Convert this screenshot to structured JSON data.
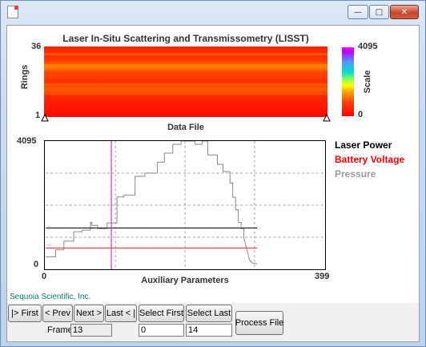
{
  "window": {
    "minimize_glyph": "—",
    "maximize_glyph": "□",
    "close_glyph": "✕"
  },
  "top_panel": {
    "title": "Laser In-Situ Scattering and Transmissometry (LISST)",
    "ylabel": "Rings",
    "y_max": "36",
    "y_min": "1",
    "xlabel": "Data File",
    "scale_label": "Scale",
    "scale_max": "4095",
    "scale_min": "0"
  },
  "chart_data": {
    "type": "line",
    "xlabel": "Auxiliary Parameters",
    "xlim": [
      0,
      399
    ],
    "ylim": [
      0,
      4095
    ],
    "x_tick_labels": [
      "0",
      "399"
    ],
    "y_tick_labels": [
      "0",
      "4095"
    ],
    "cursor_x": 94,
    "grid": true,
    "legend_placement": "right",
    "series": [
      {
        "name": "Laser Power",
        "color": "#000000",
        "x": [
          0,
          303
        ],
        "y": [
          1320,
          1320
        ]
      },
      {
        "name": "Battery Voltage",
        "color": "#ff0000",
        "x": [
          0,
          303
        ],
        "y": [
          680,
          680
        ]
      },
      {
        "name": "Pressure",
        "color": "#888888",
        "x": [
          0,
          14,
          14,
          26,
          26,
          40,
          40,
          52,
          52,
          64,
          64,
          66,
          66,
          74,
          74,
          88,
          88,
          102,
          102,
          112,
          112,
          128,
          128,
          142,
          142,
          160,
          160,
          170,
          170,
          182,
          182,
          194,
          194,
          214,
          214,
          224,
          224,
          232,
          232,
          246,
          246,
          254,
          254,
          264,
          264,
          268,
          268,
          272,
          272,
          276,
          276,
          280,
          280,
          284,
          284,
          292,
          296,
          300,
          303
        ],
        "y": [
          400,
          400,
          620,
          620,
          900,
          900,
          1200,
          1200,
          1250,
          1250,
          1500,
          1500,
          1400,
          1400,
          1300,
          1300,
          1480,
          1480,
          2310,
          2310,
          2370,
          2370,
          2970,
          2970,
          3070,
          3070,
          3420,
          3420,
          3710,
          3710,
          3990,
          3990,
          4095,
          4095,
          3990,
          3990,
          4095,
          4095,
          3650,
          3650,
          3350,
          3350,
          3120,
          3120,
          2750,
          2750,
          2300,
          2300,
          1900,
          1900,
          1500,
          1500,
          1300,
          1300,
          1000,
          300,
          200,
          180,
          180
        ]
      }
    ]
  },
  "footer": {
    "company": "Sequoia Scientific, Inc."
  },
  "controls": {
    "first": "|> First",
    "prev": "< Prev",
    "next": "Next >",
    "last": "Last < |",
    "select_first": "Select First",
    "select_last": "Select Last",
    "process": "Process File",
    "frame_label": "Frame",
    "frame_value": "13",
    "select_first_value": "0",
    "select_last_value": "14"
  },
  "colors": {
    "heatmap_base": "#ff3300",
    "laser_power": "#000000",
    "battery_voltage": "#ff0000",
    "pressure": "#888888",
    "cursor": "#cc33cc",
    "company_text": "#0a7a6a"
  }
}
